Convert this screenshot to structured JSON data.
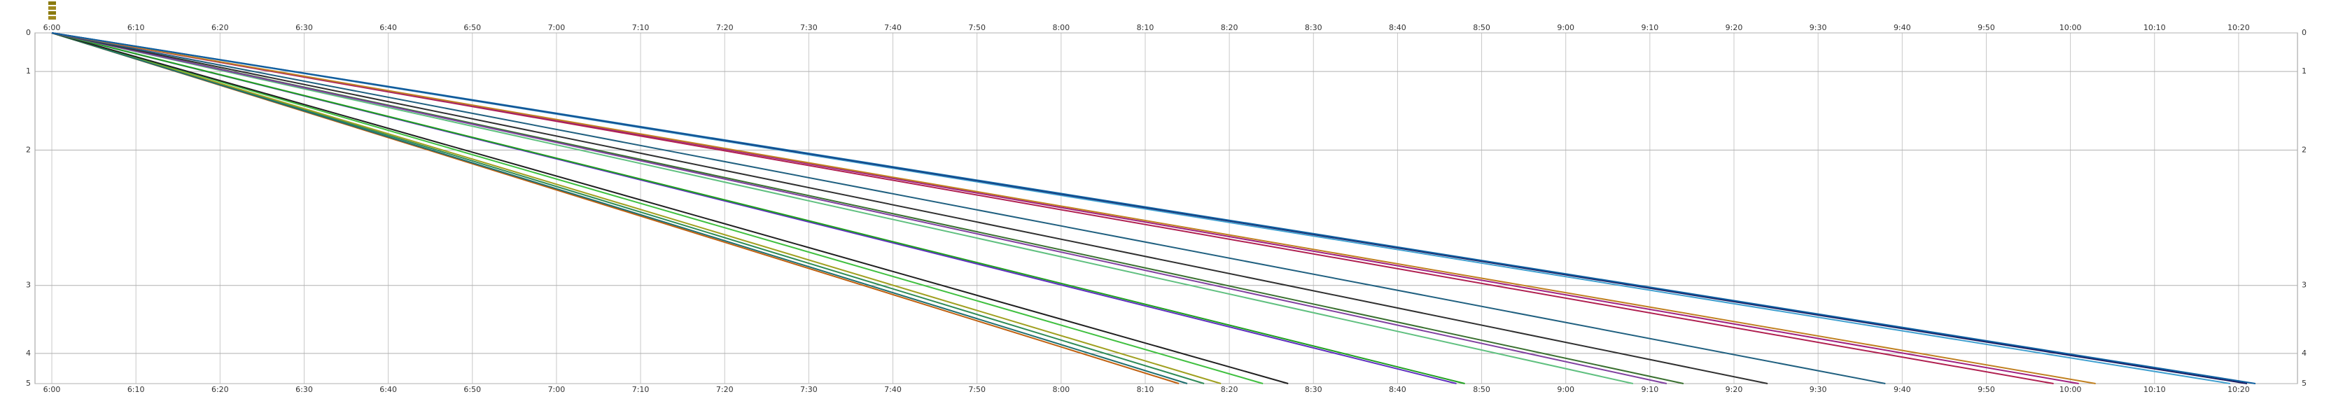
{
  "chart_data": {
    "type": "line",
    "xlim": [
      "5:58",
      "10:27"
    ],
    "xticks": [
      "6:00",
      "6:10",
      "6:20",
      "6:30",
      "6:40",
      "6:50",
      "7:00",
      "7:10",
      "7:20",
      "7:30",
      "7:40",
      "7:50",
      "8:00",
      "8:10",
      "8:20",
      "8:30",
      "8:40",
      "8:50",
      "9:00",
      "9:10",
      "9:20",
      "9:30",
      "9:40",
      "9:50",
      "10:00",
      "10:10",
      "10:20"
    ],
    "ylim": [
      0,
      5
    ],
    "stations": [
      "0",
      "1",
      "2",
      "3",
      "4",
      "5"
    ],
    "station_km": [
      0,
      0.55,
      1.67,
      3.6,
      4.57,
      5
    ],
    "grid": true,
    "series": [
      {
        "color": "#c06010",
        "x": [
          "6:00",
          "8:14"
        ],
        "values": [
          0,
          5
        ]
      },
      {
        "color": "#2e8b57",
        "x": [
          "6:00",
          "8:17"
        ],
        "values": [
          0,
          5
        ]
      },
      {
        "color": "#a0a020",
        "x": [
          "6:00",
          "8:19"
        ],
        "values": [
          0,
          5
        ]
      },
      {
        "color": "#1f6f6f",
        "x": [
          "6:00",
          "8:15"
        ],
        "values": [
          0,
          5
        ]
      },
      {
        "color": "#40c040",
        "x": [
          "6:00",
          "8:24"
        ],
        "values": [
          0,
          5
        ]
      },
      {
        "color": "#202020",
        "x": [
          "6:00",
          "8:27"
        ],
        "values": [
          0,
          5
        ]
      },
      {
        "color": "#6030c0",
        "x": [
          "6:00",
          "8:47"
        ],
        "values": [
          0,
          5
        ]
      },
      {
        "color": "#20a020",
        "x": [
          "6:00",
          "8:48"
        ],
        "values": [
          0,
          5
        ]
      },
      {
        "color": "#60c080",
        "x": [
          "6:00",
          "9:08"
        ],
        "values": [
          0,
          5
        ]
      },
      {
        "color": "#3a7030",
        "x": [
          "6:00",
          "9:14"
        ],
        "values": [
          0,
          5
        ]
      },
      {
        "color": "#8040a0",
        "x": [
          "6:00",
          "9:12"
        ],
        "values": [
          0,
          5
        ]
      },
      {
        "color": "#303030",
        "x": [
          "6:00",
          "9:24"
        ],
        "values": [
          0,
          5
        ]
      },
      {
        "color": "#206080",
        "x": [
          "6:00",
          "9:38"
        ],
        "values": [
          0,
          5
        ]
      },
      {
        "color": "#b02050",
        "x": [
          "6:00",
          "9:58"
        ],
        "values": [
          0,
          5
        ]
      },
      {
        "color": "#a02080",
        "x": [
          "6:00",
          "10:01"
        ],
        "values": [
          0,
          5
        ]
      },
      {
        "color": "#c08020",
        "x": [
          "6:00",
          "10:03"
        ],
        "values": [
          0,
          5
        ]
      },
      {
        "color": "#40a0d0",
        "x": [
          "6:00",
          "10:19"
        ],
        "values": [
          0,
          5
        ]
      },
      {
        "color": "#1a1a60",
        "x": [
          "6:00",
          "10:21"
        ],
        "values": [
          0,
          5
        ]
      },
      {
        "color": "#1060a0",
        "x": [
          "6:00",
          "10:22"
        ],
        "values": [
          0,
          5
        ]
      }
    ]
  }
}
